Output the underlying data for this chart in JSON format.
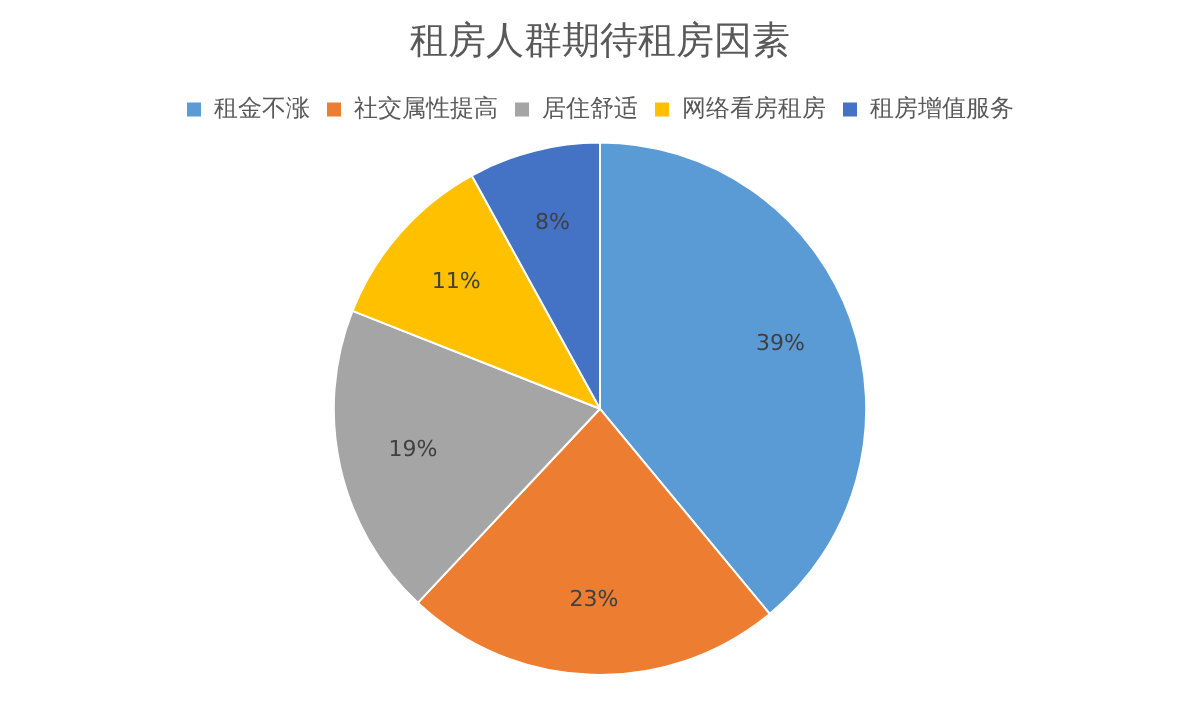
{
  "chart_data": {
    "type": "pie",
    "title": "租房人群期待租房因素",
    "categories": [
      "租金不涨",
      "社交属性提高",
      "居住舒适",
      "网络看房租房",
      "租房增值服务"
    ],
    "values": [
      39,
      23,
      19,
      11,
      8
    ],
    "value_labels": [
      "39%",
      "23%",
      "19%",
      "11%",
      "8%"
    ],
    "colors": [
      "#5b9bd5",
      "#ed7d31",
      "#a5a5a5",
      "#ffc000",
      "#4472c4"
    ],
    "legend": "top"
  }
}
